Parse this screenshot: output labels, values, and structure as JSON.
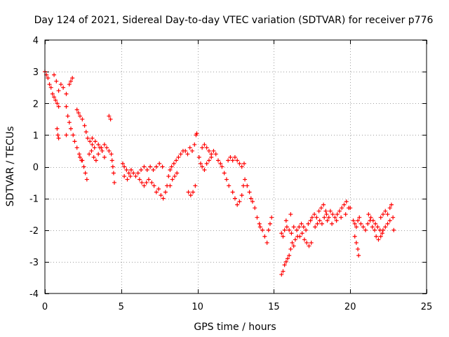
{
  "chart_data": {
    "type": "scatter",
    "title": "Day 124 of 2021, Sidereal Day-to-day VTEC variation (SDTVAR) for receiver p776",
    "xlabel": "GPS time / hours",
    "ylabel": "SDTVAR / TECUs",
    "xlim": [
      0,
      25
    ],
    "ylim": [
      -4,
      4
    ],
    "x_ticks": [
      0,
      5,
      10,
      15,
      20,
      25
    ],
    "y_ticks": [
      -4,
      -3,
      -2,
      -1,
      0,
      1,
      2,
      3,
      4
    ],
    "x_tick_labels": [
      "0",
      "5",
      "10",
      "15",
      "20",
      "25"
    ],
    "y_tick_labels": [
      "-4",
      "-3",
      "-2",
      "-1",
      "0",
      "1",
      "2",
      "3",
      "4"
    ],
    "grid": true,
    "legend": "none",
    "marker": "plus",
    "color": "#ff0000",
    "series": [
      {
        "name": "SDTVAR",
        "points": [
          [
            0.0,
            3.0
          ],
          [
            0.1,
            2.9
          ],
          [
            0.2,
            2.8
          ],
          [
            0.3,
            2.6
          ],
          [
            0.4,
            2.5
          ],
          [
            0.5,
            2.3
          ],
          [
            0.6,
            2.2
          ],
          [
            0.7,
            2.1
          ],
          [
            0.8,
            2.0
          ],
          [
            0.9,
            1.9
          ],
          [
            0.6,
            2.9
          ],
          [
            0.75,
            2.7
          ],
          [
            0.9,
            2.4
          ],
          [
            1.05,
            2.6
          ],
          [
            1.2,
            2.5
          ],
          [
            1.4,
            2.3
          ],
          [
            1.6,
            2.6
          ],
          [
            1.8,
            2.8
          ],
          [
            1.7,
            2.7
          ],
          [
            1.4,
            1.9
          ],
          [
            1.5,
            1.6
          ],
          [
            1.6,
            1.4
          ],
          [
            1.7,
            1.2
          ],
          [
            1.85,
            1.0
          ],
          [
            1.95,
            0.8
          ],
          [
            2.1,
            0.6
          ],
          [
            2.25,
            0.4
          ],
          [
            2.4,
            0.2
          ],
          [
            0.8,
            1.2
          ],
          [
            0.85,
            1.0
          ],
          [
            0.9,
            0.9
          ],
          [
            1.4,
            1.0
          ],
          [
            2.1,
            1.8
          ],
          [
            2.2,
            1.7
          ],
          [
            2.3,
            1.6
          ],
          [
            2.45,
            1.5
          ],
          [
            2.6,
            1.3
          ],
          [
            2.7,
            1.1
          ],
          [
            2.8,
            0.9
          ],
          [
            2.95,
            0.8
          ],
          [
            3.1,
            0.7
          ],
          [
            3.25,
            0.6
          ],
          [
            2.3,
            0.3
          ],
          [
            2.45,
            0.2
          ],
          [
            2.55,
            0.0
          ],
          [
            2.65,
            -0.2
          ],
          [
            2.75,
            -0.4
          ],
          [
            2.9,
            0.4
          ],
          [
            3.05,
            0.5
          ],
          [
            3.2,
            0.3
          ],
          [
            3.35,
            0.2
          ],
          [
            3.5,
            0.4
          ],
          [
            3.6,
            0.6
          ],
          [
            3.75,
            0.5
          ],
          [
            3.9,
            0.3
          ],
          [
            3.1,
            0.9
          ],
          [
            3.3,
            0.8
          ],
          [
            3.5,
            0.7
          ],
          [
            3.7,
            0.6
          ],
          [
            3.9,
            0.7
          ],
          [
            4.05,
            0.6
          ],
          [
            4.2,
            0.5
          ],
          [
            4.2,
            1.6
          ],
          [
            4.3,
            1.5
          ],
          [
            4.35,
            0.4
          ],
          [
            4.4,
            0.2
          ],
          [
            4.45,
            0.0
          ],
          [
            4.5,
            -0.2
          ],
          [
            4.55,
            -0.5
          ],
          [
            5.1,
            0.1
          ],
          [
            5.2,
            0.0
          ],
          [
            5.35,
            -0.1
          ],
          [
            5.5,
            -0.2
          ],
          [
            5.65,
            -0.1
          ],
          [
            5.8,
            -0.2
          ],
          [
            5.95,
            -0.3
          ],
          [
            6.1,
            -0.2
          ],
          [
            5.2,
            -0.3
          ],
          [
            5.4,
            -0.4
          ],
          [
            5.6,
            -0.3
          ],
          [
            6.2,
            -0.4
          ],
          [
            6.35,
            -0.5
          ],
          [
            6.5,
            -0.6
          ],
          [
            6.65,
            -0.5
          ],
          [
            6.8,
            -0.4
          ],
          [
            6.3,
            -0.1
          ],
          [
            6.5,
            0.0
          ],
          [
            6.7,
            -0.1
          ],
          [
            6.9,
            0.0
          ],
          [
            7.1,
            -0.1
          ],
          [
            7.3,
            0.0
          ],
          [
            7.5,
            0.1
          ],
          [
            7.7,
            0.0
          ],
          [
            7.0,
            -0.5
          ],
          [
            7.15,
            -0.6
          ],
          [
            7.3,
            -0.8
          ],
          [
            7.45,
            -0.7
          ],
          [
            7.6,
            -0.9
          ],
          [
            7.75,
            -1.0
          ],
          [
            7.9,
            -0.8
          ],
          [
            8.0,
            -0.6
          ],
          [
            8.1,
            -0.3
          ],
          [
            8.2,
            -0.1
          ],
          [
            8.3,
            0.0
          ],
          [
            8.45,
            0.1
          ],
          [
            8.6,
            0.2
          ],
          [
            8.75,
            0.3
          ],
          [
            8.9,
            0.4
          ],
          [
            9.05,
            0.5
          ],
          [
            9.2,
            0.5
          ],
          [
            9.35,
            0.4
          ],
          [
            8.2,
            -0.6
          ],
          [
            8.35,
            -0.4
          ],
          [
            8.5,
            -0.3
          ],
          [
            8.65,
            -0.2
          ],
          [
            9.4,
            -0.8
          ],
          [
            9.55,
            -0.9
          ],
          [
            9.7,
            -0.8
          ],
          [
            9.85,
            -0.6
          ],
          [
            9.5,
            0.6
          ],
          [
            9.65,
            0.5
          ],
          [
            9.8,
            0.7
          ],
          [
            9.9,
            1.0
          ],
          [
            9.95,
            1.05
          ],
          [
            10.1,
            0.3
          ],
          [
            10.2,
            0.1
          ],
          [
            10.3,
            0.0
          ],
          [
            10.45,
            -0.1
          ],
          [
            10.6,
            0.1
          ],
          [
            10.75,
            0.2
          ],
          [
            10.9,
            0.3
          ],
          [
            10.3,
            0.6
          ],
          [
            10.45,
            0.7
          ],
          [
            10.6,
            0.6
          ],
          [
            10.75,
            0.5
          ],
          [
            10.9,
            0.4
          ],
          [
            11.05,
            0.5
          ],
          [
            11.2,
            0.4
          ],
          [
            11.35,
            0.2
          ],
          [
            11.5,
            0.1
          ],
          [
            11.6,
            0.0
          ],
          [
            11.75,
            -0.2
          ],
          [
            11.9,
            -0.4
          ],
          [
            12.05,
            -0.6
          ],
          [
            12.0,
            0.2
          ],
          [
            12.15,
            0.3
          ],
          [
            12.3,
            0.2
          ],
          [
            12.45,
            0.3
          ],
          [
            12.6,
            0.2
          ],
          [
            12.75,
            0.1
          ],
          [
            12.9,
            0.0
          ],
          [
            13.05,
            0.1
          ],
          [
            12.3,
            -0.8
          ],
          [
            12.45,
            -1.0
          ],
          [
            12.6,
            -1.2
          ],
          [
            12.75,
            -1.1
          ],
          [
            12.9,
            -0.9
          ],
          [
            13.0,
            -0.6
          ],
          [
            13.1,
            -0.4
          ],
          [
            13.25,
            -0.6
          ],
          [
            13.4,
            -0.8
          ],
          [
            13.5,
            -1.0
          ],
          [
            13.6,
            -1.1
          ],
          [
            13.75,
            -1.3
          ],
          [
            13.9,
            -1.6
          ],
          [
            14.05,
            -1.8
          ],
          [
            14.1,
            -1.9
          ],
          [
            14.25,
            -2.0
          ],
          [
            14.4,
            -2.2
          ],
          [
            14.55,
            -2.4
          ],
          [
            14.65,
            -2.0
          ],
          [
            14.75,
            -1.8
          ],
          [
            14.85,
            -1.6
          ],
          [
            15.5,
            -2.1
          ],
          [
            15.6,
            -2.2
          ],
          [
            15.7,
            -2.0
          ],
          [
            15.85,
            -1.9
          ],
          [
            16.0,
            -2.0
          ],
          [
            16.15,
            -2.1
          ],
          [
            16.3,
            -1.9
          ],
          [
            15.5,
            -3.4
          ],
          [
            15.6,
            -3.3
          ],
          [
            15.7,
            -3.1
          ],
          [
            15.8,
            -3.0
          ],
          [
            15.9,
            -2.9
          ],
          [
            16.0,
            -2.8
          ],
          [
            16.1,
            -2.6
          ],
          [
            15.8,
            -1.7
          ],
          [
            16.1,
            -1.5
          ],
          [
            16.2,
            -2.4
          ],
          [
            16.3,
            -2.5
          ],
          [
            16.4,
            -2.3
          ],
          [
            16.55,
            -2.2
          ],
          [
            16.5,
            -2.0
          ],
          [
            16.65,
            -1.9
          ],
          [
            16.8,
            -1.8
          ],
          [
            16.95,
            -1.9
          ],
          [
            17.1,
            -2.0
          ],
          [
            17.25,
            -1.8
          ],
          [
            17.4,
            -1.7
          ],
          [
            16.7,
            -2.2
          ],
          [
            16.85,
            -2.1
          ],
          [
            17.0,
            -2.3
          ],
          [
            17.15,
            -2.4
          ],
          [
            17.3,
            -2.5
          ],
          [
            17.45,
            -2.4
          ],
          [
            17.5,
            -1.6
          ],
          [
            17.65,
            -1.5
          ],
          [
            17.8,
            -1.6
          ],
          [
            17.95,
            -1.4
          ],
          [
            18.1,
            -1.3
          ],
          [
            18.25,
            -1.2
          ],
          [
            18.4,
            -1.4
          ],
          [
            17.7,
            -1.9
          ],
          [
            17.85,
            -1.8
          ],
          [
            18.0,
            -1.7
          ],
          [
            18.15,
            -1.8
          ],
          [
            18.3,
            -1.6
          ],
          [
            18.45,
            -1.5
          ],
          [
            18.6,
            -1.6
          ],
          [
            18.7,
            -1.4
          ],
          [
            18.85,
            -1.5
          ],
          [
            19.0,
            -1.6
          ],
          [
            19.15,
            -1.5
          ],
          [
            19.3,
            -1.4
          ],
          [
            19.45,
            -1.3
          ],
          [
            19.6,
            -1.2
          ],
          [
            19.75,
            -1.1
          ],
          [
            19.9,
            -1.3
          ],
          [
            18.5,
            -1.7
          ],
          [
            18.8,
            -1.8
          ],
          [
            19.1,
            -1.7
          ],
          [
            19.4,
            -1.6
          ],
          [
            19.7,
            -1.5
          ],
          [
            20.0,
            -1.3
          ],
          [
            20.2,
            -1.7
          ],
          [
            20.3,
            -1.8
          ],
          [
            20.4,
            -1.9
          ],
          [
            20.5,
            -1.7
          ],
          [
            20.6,
            -1.6
          ],
          [
            20.3,
            -2.2
          ],
          [
            20.4,
            -2.4
          ],
          [
            20.5,
            -2.6
          ],
          [
            20.55,
            -2.8
          ],
          [
            20.7,
            -1.8
          ],
          [
            20.85,
            -1.9
          ],
          [
            21.0,
            -2.0
          ],
          [
            21.15,
            -1.8
          ],
          [
            21.3,
            -1.7
          ],
          [
            21.45,
            -1.9
          ],
          [
            21.6,
            -2.0
          ],
          [
            21.2,
            -1.5
          ],
          [
            21.35,
            -1.6
          ],
          [
            21.5,
            -1.7
          ],
          [
            21.65,
            -1.8
          ],
          [
            21.8,
            -1.9
          ],
          [
            21.95,
            -2.0
          ],
          [
            22.1,
            -2.1
          ],
          [
            21.7,
            -2.2
          ],
          [
            21.85,
            -2.3
          ],
          [
            22.0,
            -2.2
          ],
          [
            22.15,
            -2.0
          ],
          [
            22.3,
            -1.9
          ],
          [
            22.45,
            -1.8
          ],
          [
            22.6,
            -1.7
          ],
          [
            22.0,
            -1.6
          ],
          [
            22.15,
            -1.5
          ],
          [
            22.3,
            -1.4
          ],
          [
            22.45,
            -1.5
          ],
          [
            22.6,
            -1.3
          ],
          [
            22.7,
            -1.2
          ],
          [
            22.8,
            -1.6
          ],
          [
            22.85,
            -2.0
          ]
        ]
      }
    ]
  }
}
